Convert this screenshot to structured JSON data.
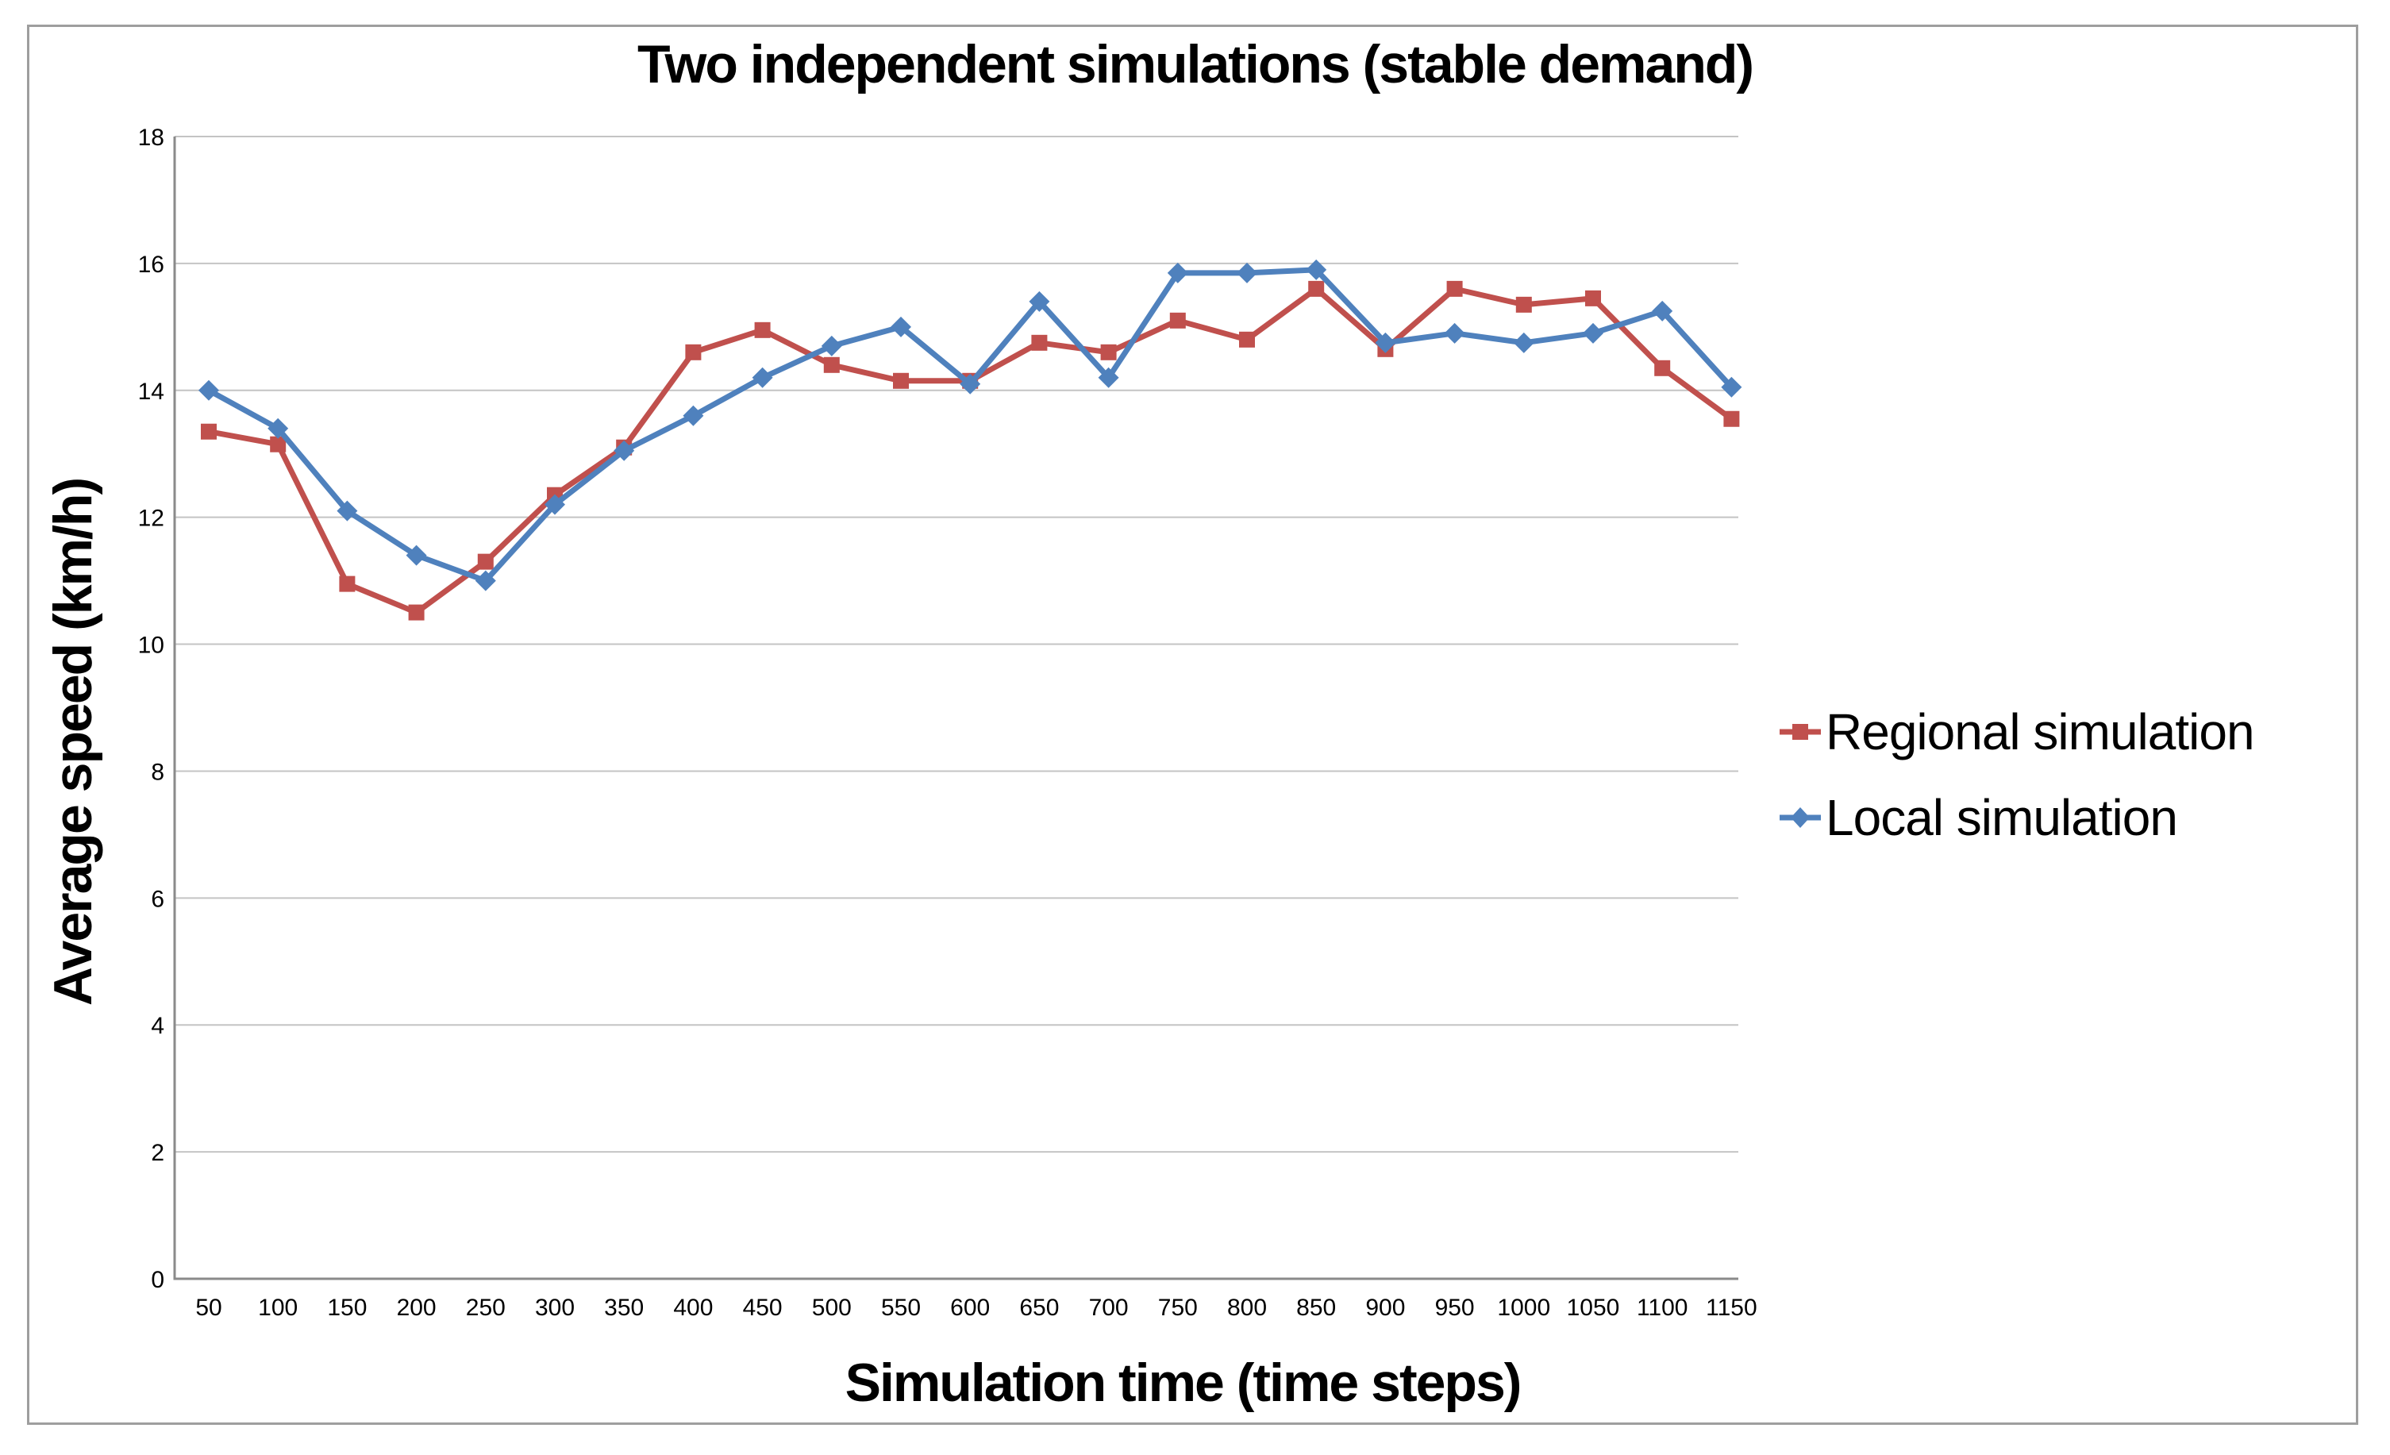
{
  "chart_data": {
    "type": "line",
    "title": "Two independent simulations (stable demand)",
    "xlabel": "Simulation time (time steps)",
    "ylabel": "Average speed (km/h)",
    "x": [
      50,
      100,
      150,
      200,
      250,
      300,
      350,
      400,
      450,
      500,
      550,
      600,
      650,
      700,
      750,
      800,
      850,
      900,
      950,
      1000,
      1050,
      1100,
      1150
    ],
    "series": [
      {
        "name": "Regional simulation",
        "color": "#C0504D",
        "marker": "square",
        "values": [
          13.35,
          13.15,
          10.95,
          10.5,
          11.3,
          12.35,
          13.1,
          14.6,
          14.95,
          14.4,
          14.15,
          14.15,
          14.75,
          14.6,
          15.1,
          14.8,
          15.6,
          14.65,
          15.6,
          15.35,
          15.45,
          14.35,
          13.55
        ]
      },
      {
        "name": "Local simulation",
        "color": "#4F81BD",
        "marker": "diamond",
        "values": [
          14.0,
          13.4,
          12.1,
          11.4,
          11.0,
          12.2,
          13.05,
          13.6,
          14.2,
          14.7,
          15.0,
          14.1,
          15.4,
          14.2,
          15.85,
          15.85,
          15.9,
          14.75,
          14.9,
          14.75,
          14.9,
          15.25,
          14.05
        ]
      }
    ],
    "ylim": [
      0,
      18
    ],
    "y_tick_step": 2,
    "y_tick_labels": [
      "0",
      "2",
      "4",
      "6",
      "8",
      "10",
      "12",
      "14",
      "16",
      "18"
    ],
    "x_tick_labels": [
      "50",
      "100",
      "150",
      "200",
      "250",
      "300",
      "350",
      "400",
      "450",
      "500",
      "550",
      "600",
      "650",
      "700",
      "750",
      "800",
      "850",
      "900",
      "950",
      "1000",
      "1050",
      "1100",
      "1150"
    ],
    "grid": "horizontal",
    "legend_position": "right",
    "styles": {
      "gridline_color": "#C4C4C4",
      "axis_color": "#8A8A8A",
      "chart_border_color": "#9E9E9E",
      "background_color": "#FFFFFF",
      "text_color": "#000000"
    }
  }
}
